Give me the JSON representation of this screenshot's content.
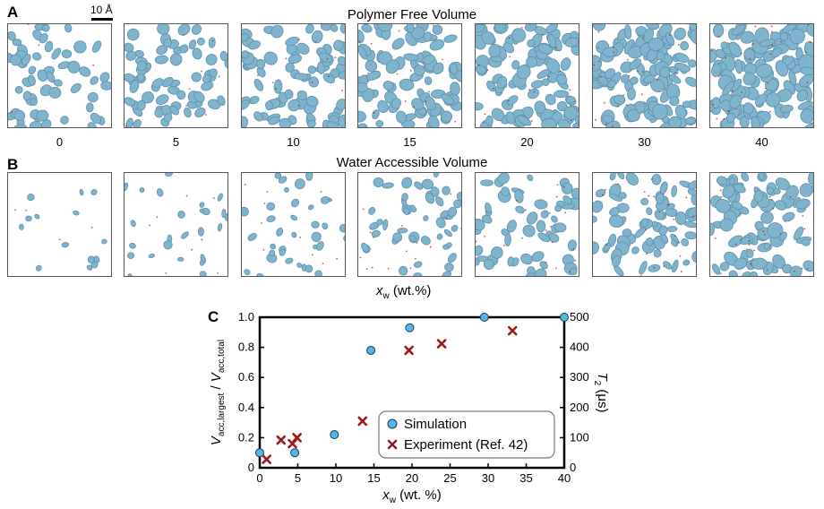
{
  "panels": {
    "a": {
      "letter": "A",
      "title": "Polymer Free Volume"
    },
    "b": {
      "letter": "B",
      "title": "Water Accessible Volume"
    },
    "c": {
      "letter": "C"
    }
  },
  "scale_bar": "10 Å",
  "tile_labels": [
    "0",
    "5",
    "10",
    "15",
    "20",
    "30",
    "40"
  ],
  "xaxis_between": {
    "main": "x",
    "sub": "w",
    "unit": " (wt.%)"
  },
  "colors": {
    "blob": "#7fb4cf",
    "blob_dark": "#5f8fa8",
    "cross": "#9c1a1a",
    "sim": "#4fb8e6"
  },
  "chart_data": {
    "type": "scatter",
    "xlabel": {
      "main": "x",
      "sub": "w",
      "unit": " (wt. %)"
    },
    "ylabel_left": {
      "v1": "V",
      "s1": "acc,largest",
      "sep": " / ",
      "v2": "V",
      "s2": "acc,total"
    },
    "ylabel_right": {
      "main": "T",
      "sub": "2",
      "unit": " (μs)"
    },
    "xlim": [
      0,
      40
    ],
    "ylim_left": [
      0,
      1.0
    ],
    "ylim_right": [
      0,
      500
    ],
    "xticks": [
      0,
      5,
      10,
      15,
      20,
      25,
      30,
      35,
      40
    ],
    "yticks_left": [
      0,
      0.2,
      0.4,
      0.6,
      0.8,
      1.0
    ],
    "yticks_left_labels": [
      "0",
      "0.2",
      "0.4",
      "0.6",
      "0.8",
      "1.0"
    ],
    "yticks_right": [
      0,
      100,
      200,
      300,
      400,
      500
    ],
    "series": [
      {
        "name": "Simulation",
        "axis": "left",
        "marker": "circle",
        "x": [
          0,
          4.6,
          9.8,
          14.6,
          19.7,
          29.5,
          40
        ],
        "y": [
          0.1,
          0.1,
          0.22,
          0.78,
          0.93,
          1.0,
          1.0
        ]
      },
      {
        "name": "Experiment (Ref. 42)",
        "axis": "right",
        "marker": "x",
        "x": [
          0.9,
          2.8,
          4.3,
          4.9,
          13.5,
          19.6,
          23.9,
          33.2
        ],
        "y": [
          28,
          92,
          80,
          100,
          155,
          390,
          412,
          455
        ]
      }
    ],
    "legend_position": "lower-right"
  }
}
